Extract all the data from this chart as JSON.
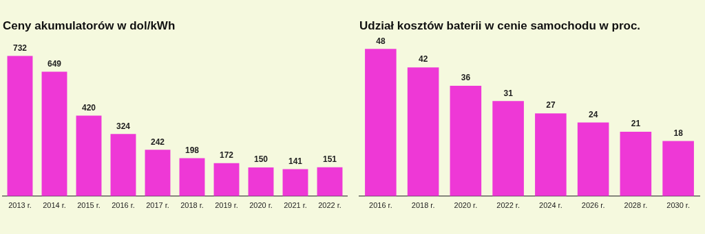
{
  "chart_data": [
    {
      "type": "bar",
      "title": "Ceny akumulatorów w dol/kWh",
      "categories": [
        "2013 r.",
        "2014 r.",
        "2015 r.",
        "2016 r.",
        "2017 r.",
        "2018 r.",
        "2019 r.",
        "2020 r.",
        "2021 r.",
        "2022 r."
      ],
      "values": [
        732,
        649,
        420,
        324,
        242,
        198,
        172,
        150,
        141,
        151
      ],
      "color": "#ee38d6",
      "data_labels": true,
      "grid": false,
      "legend": false,
      "tick_labels": "x"
    },
    {
      "type": "bar",
      "title": "Udział kosztów baterii w cenie samochodu w proc.",
      "categories": [
        "2016 r.",
        "2018 r.",
        "2020 r.",
        "2022 r.",
        "2024 r.",
        "2026 r.",
        "2028 r.",
        "2030 r."
      ],
      "values": [
        48,
        42,
        36,
        31,
        27,
        24,
        21,
        18
      ],
      "color": "#ee38d6",
      "data_labels": true,
      "grid": false,
      "legend": false,
      "tick_labels": "x"
    }
  ]
}
